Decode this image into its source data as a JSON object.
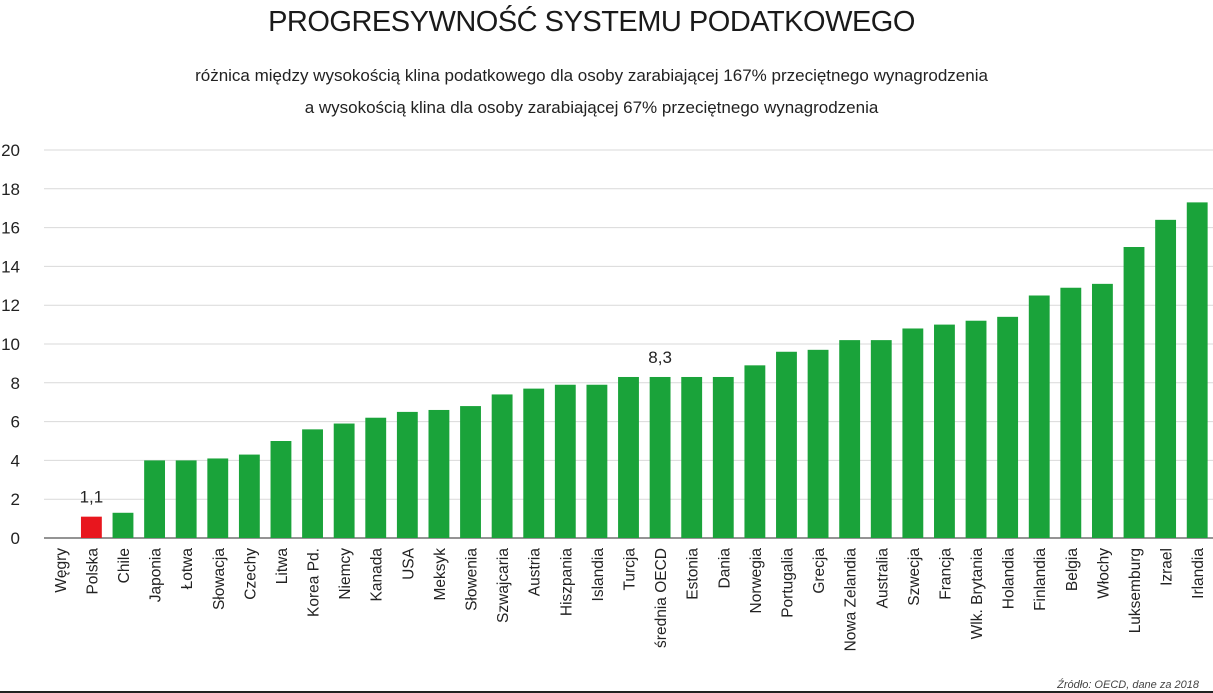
{
  "chart_data": {
    "type": "bar",
    "title": "PROGRESYWNOŚĆ SYSTEMU PODATKOWEGO",
    "subtitle_line1": "różnica między wysokością klina podatkowego dla osoby zarabiającej 167% przeciętnego wynagrodzenia",
    "subtitle_line2": "a wysokością klina dla osoby zarabiającej 67% przeciętnego wynagrodzenia",
    "source": "Źródło: OECD, dane za 2018",
    "ylim": [
      0,
      20
    ],
    "yticks": [
      "0",
      "2",
      "4",
      "6",
      "8",
      "10",
      "12",
      "14",
      "16",
      "18",
      "20"
    ],
    "grid": true,
    "categories": [
      "Węgry",
      "Polska",
      "Chile",
      "Japonia",
      "Łotwa",
      "Słowacja",
      "Czechy",
      "Litwa",
      "Korea Pd.",
      "Niemcy",
      "Kanada",
      "USA",
      "Meksyk",
      "Słowenia",
      "Szwajcaria",
      "Austria",
      "Hiszpania",
      "Islandia",
      "Turcja",
      "średnia OECD",
      "Estonia",
      "Dania",
      "Norwegia",
      "Portugalia",
      "Grecja",
      "Nowa Zelandia",
      "Australia",
      "Szwecja",
      "Francja",
      "Wlk. Brytania",
      "Holandia",
      "Finlandia",
      "Belgia",
      "Włochy",
      "Luksemburg",
      "Izrael",
      "Irlandia"
    ],
    "values": [
      0.0,
      1.1,
      1.3,
      4.0,
      4.0,
      4.1,
      4.3,
      5.0,
      5.6,
      5.9,
      6.2,
      6.5,
      6.6,
      6.8,
      7.4,
      7.7,
      7.9,
      7.9,
      8.3,
      8.3,
      8.3,
      8.3,
      8.9,
      9.6,
      9.7,
      10.2,
      10.2,
      10.8,
      11.0,
      11.2,
      11.4,
      12.5,
      12.9,
      13.1,
      15.0,
      16.4,
      17.3
    ],
    "highlight_category": "Polska",
    "colors": {
      "bar": "#1aa33a",
      "highlight": "#e8161e",
      "grid": "#d9d9d9",
      "axis": "#555555"
    },
    "data_labels": [
      {
        "category": "Polska",
        "text": "1,1"
      },
      {
        "category": "średnia OECD",
        "text": "8,3"
      }
    ]
  }
}
